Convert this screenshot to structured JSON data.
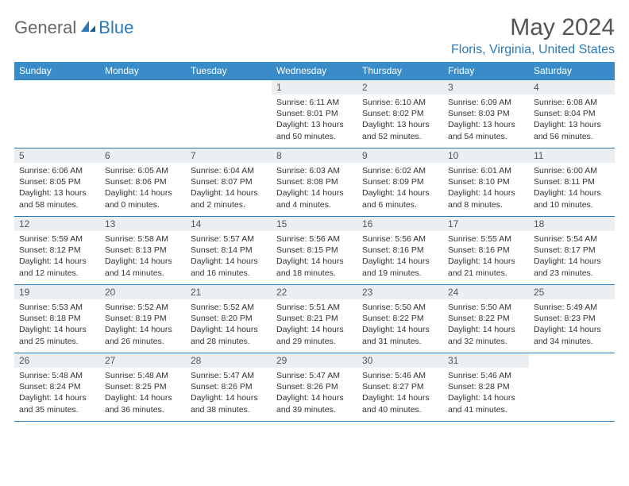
{
  "logo": {
    "general": "General",
    "blue": "Blue"
  },
  "title": "May 2024",
  "location": "Floris, Virginia, United States",
  "colors": {
    "header_bg": "#3a8cc9",
    "accent": "#2a7ab9",
    "daynum_bg": "#ebeff2",
    "text": "#333333",
    "title_text": "#555555"
  },
  "day_labels": [
    "Sunday",
    "Monday",
    "Tuesday",
    "Wednesday",
    "Thursday",
    "Friday",
    "Saturday"
  ],
  "weeks": [
    [
      {
        "empty": true
      },
      {
        "empty": true
      },
      {
        "empty": true
      },
      {
        "n": "1",
        "sr": "Sunrise: 6:11 AM",
        "ss": "Sunset: 8:01 PM",
        "dl1": "Daylight: 13 hours",
        "dl2": "and 50 minutes."
      },
      {
        "n": "2",
        "sr": "Sunrise: 6:10 AM",
        "ss": "Sunset: 8:02 PM",
        "dl1": "Daylight: 13 hours",
        "dl2": "and 52 minutes."
      },
      {
        "n": "3",
        "sr": "Sunrise: 6:09 AM",
        "ss": "Sunset: 8:03 PM",
        "dl1": "Daylight: 13 hours",
        "dl2": "and 54 minutes."
      },
      {
        "n": "4",
        "sr": "Sunrise: 6:08 AM",
        "ss": "Sunset: 8:04 PM",
        "dl1": "Daylight: 13 hours",
        "dl2": "and 56 minutes."
      }
    ],
    [
      {
        "n": "5",
        "sr": "Sunrise: 6:06 AM",
        "ss": "Sunset: 8:05 PM",
        "dl1": "Daylight: 13 hours",
        "dl2": "and 58 minutes."
      },
      {
        "n": "6",
        "sr": "Sunrise: 6:05 AM",
        "ss": "Sunset: 8:06 PM",
        "dl1": "Daylight: 14 hours",
        "dl2": "and 0 minutes."
      },
      {
        "n": "7",
        "sr": "Sunrise: 6:04 AM",
        "ss": "Sunset: 8:07 PM",
        "dl1": "Daylight: 14 hours",
        "dl2": "and 2 minutes."
      },
      {
        "n": "8",
        "sr": "Sunrise: 6:03 AM",
        "ss": "Sunset: 8:08 PM",
        "dl1": "Daylight: 14 hours",
        "dl2": "and 4 minutes."
      },
      {
        "n": "9",
        "sr": "Sunrise: 6:02 AM",
        "ss": "Sunset: 8:09 PM",
        "dl1": "Daylight: 14 hours",
        "dl2": "and 6 minutes."
      },
      {
        "n": "10",
        "sr": "Sunrise: 6:01 AM",
        "ss": "Sunset: 8:10 PM",
        "dl1": "Daylight: 14 hours",
        "dl2": "and 8 minutes."
      },
      {
        "n": "11",
        "sr": "Sunrise: 6:00 AM",
        "ss": "Sunset: 8:11 PM",
        "dl1": "Daylight: 14 hours",
        "dl2": "and 10 minutes."
      }
    ],
    [
      {
        "n": "12",
        "sr": "Sunrise: 5:59 AM",
        "ss": "Sunset: 8:12 PM",
        "dl1": "Daylight: 14 hours",
        "dl2": "and 12 minutes."
      },
      {
        "n": "13",
        "sr": "Sunrise: 5:58 AM",
        "ss": "Sunset: 8:13 PM",
        "dl1": "Daylight: 14 hours",
        "dl2": "and 14 minutes."
      },
      {
        "n": "14",
        "sr": "Sunrise: 5:57 AM",
        "ss": "Sunset: 8:14 PM",
        "dl1": "Daylight: 14 hours",
        "dl2": "and 16 minutes."
      },
      {
        "n": "15",
        "sr": "Sunrise: 5:56 AM",
        "ss": "Sunset: 8:15 PM",
        "dl1": "Daylight: 14 hours",
        "dl2": "and 18 minutes."
      },
      {
        "n": "16",
        "sr": "Sunrise: 5:56 AM",
        "ss": "Sunset: 8:16 PM",
        "dl1": "Daylight: 14 hours",
        "dl2": "and 19 minutes."
      },
      {
        "n": "17",
        "sr": "Sunrise: 5:55 AM",
        "ss": "Sunset: 8:16 PM",
        "dl1": "Daylight: 14 hours",
        "dl2": "and 21 minutes."
      },
      {
        "n": "18",
        "sr": "Sunrise: 5:54 AM",
        "ss": "Sunset: 8:17 PM",
        "dl1": "Daylight: 14 hours",
        "dl2": "and 23 minutes."
      }
    ],
    [
      {
        "n": "19",
        "sr": "Sunrise: 5:53 AM",
        "ss": "Sunset: 8:18 PM",
        "dl1": "Daylight: 14 hours",
        "dl2": "and 25 minutes."
      },
      {
        "n": "20",
        "sr": "Sunrise: 5:52 AM",
        "ss": "Sunset: 8:19 PM",
        "dl1": "Daylight: 14 hours",
        "dl2": "and 26 minutes."
      },
      {
        "n": "21",
        "sr": "Sunrise: 5:52 AM",
        "ss": "Sunset: 8:20 PM",
        "dl1": "Daylight: 14 hours",
        "dl2": "and 28 minutes."
      },
      {
        "n": "22",
        "sr": "Sunrise: 5:51 AM",
        "ss": "Sunset: 8:21 PM",
        "dl1": "Daylight: 14 hours",
        "dl2": "and 29 minutes."
      },
      {
        "n": "23",
        "sr": "Sunrise: 5:50 AM",
        "ss": "Sunset: 8:22 PM",
        "dl1": "Daylight: 14 hours",
        "dl2": "and 31 minutes."
      },
      {
        "n": "24",
        "sr": "Sunrise: 5:50 AM",
        "ss": "Sunset: 8:22 PM",
        "dl1": "Daylight: 14 hours",
        "dl2": "and 32 minutes."
      },
      {
        "n": "25",
        "sr": "Sunrise: 5:49 AM",
        "ss": "Sunset: 8:23 PM",
        "dl1": "Daylight: 14 hours",
        "dl2": "and 34 minutes."
      }
    ],
    [
      {
        "n": "26",
        "sr": "Sunrise: 5:48 AM",
        "ss": "Sunset: 8:24 PM",
        "dl1": "Daylight: 14 hours",
        "dl2": "and 35 minutes."
      },
      {
        "n": "27",
        "sr": "Sunrise: 5:48 AM",
        "ss": "Sunset: 8:25 PM",
        "dl1": "Daylight: 14 hours",
        "dl2": "and 36 minutes."
      },
      {
        "n": "28",
        "sr": "Sunrise: 5:47 AM",
        "ss": "Sunset: 8:26 PM",
        "dl1": "Daylight: 14 hours",
        "dl2": "and 38 minutes."
      },
      {
        "n": "29",
        "sr": "Sunrise: 5:47 AM",
        "ss": "Sunset: 8:26 PM",
        "dl1": "Daylight: 14 hours",
        "dl2": "and 39 minutes."
      },
      {
        "n": "30",
        "sr": "Sunrise: 5:46 AM",
        "ss": "Sunset: 8:27 PM",
        "dl1": "Daylight: 14 hours",
        "dl2": "and 40 minutes."
      },
      {
        "n": "31",
        "sr": "Sunrise: 5:46 AM",
        "ss": "Sunset: 8:28 PM",
        "dl1": "Daylight: 14 hours",
        "dl2": "and 41 minutes."
      },
      {
        "empty": true
      }
    ]
  ]
}
